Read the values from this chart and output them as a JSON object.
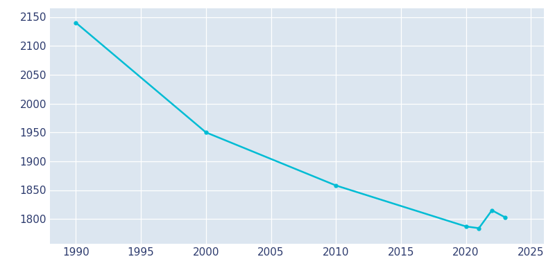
{
  "years": [
    1990,
    2000,
    2010,
    2020,
    2021,
    2022,
    2023
  ],
  "population": [
    2140,
    1950,
    1858,
    1787,
    1784,
    1815,
    1803
  ],
  "line_color": "#00bcd4",
  "background_color": "#dce6f0",
  "grid_color": "#ffffff",
  "text_color": "#2d3b6e",
  "xlim": [
    1988,
    2026
  ],
  "ylim": [
    1757,
    2165
  ],
  "xticks": [
    1990,
    1995,
    2000,
    2005,
    2010,
    2015,
    2020,
    2025
  ],
  "yticks": [
    1800,
    1850,
    1900,
    1950,
    2000,
    2050,
    2100,
    2150
  ],
  "line_width": 1.8,
  "marker_size": 3.5,
  "tick_labelsize": 11
}
